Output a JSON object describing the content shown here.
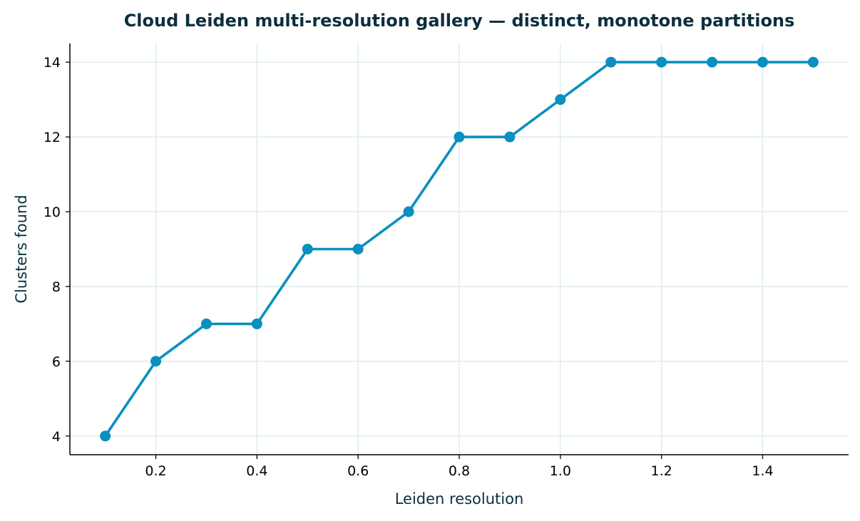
{
  "chart_data": {
    "type": "line",
    "title": "Cloud Leiden multi-resolution gallery — distinct, monotone partitions",
    "xlabel": "Leiden resolution",
    "ylabel": "Clusters found",
    "x": [
      0.1,
      0.2,
      0.3,
      0.4,
      0.5,
      0.6,
      0.7,
      0.8,
      0.9,
      1.0,
      1.1,
      1.2,
      1.3,
      1.4,
      1.5
    ],
    "series": [
      {
        "values": [
          4,
          6,
          7,
          7,
          9,
          9,
          10,
          12,
          12,
          13,
          14,
          14,
          14,
          14,
          14
        ],
        "color": "#0a8fbf"
      }
    ],
    "xlim": [
      0.03,
      1.57
    ],
    "ylim": [
      3.5,
      14.5
    ],
    "xticks": [
      "0.2",
      "0.4",
      "0.6",
      "0.8",
      "1.0",
      "1.2",
      "1.4"
    ],
    "yticks": [
      "4",
      "6",
      "8",
      "10",
      "12",
      "14"
    ],
    "grid": true,
    "legend": "none"
  },
  "colors": {
    "title": "#0c2f3f",
    "axis_label": "#0c2f3f",
    "line": "#0a8fbf",
    "grid": "#ddecef",
    "axis": "#000000"
  }
}
